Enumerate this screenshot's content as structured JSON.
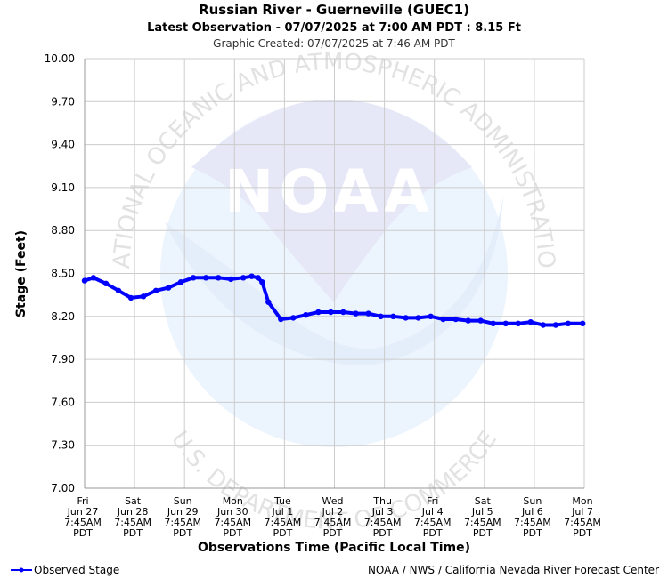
{
  "header": {
    "title": "Russian River - Guerneville (GUEC1)",
    "subtitle": "Latest Observation - 07/07/2025 at 7:00 AM PDT : 8.15 Ft",
    "created": "Graphic Created: 07/07/2025 at 7:46 AM PDT"
  },
  "watermark": {
    "logo_text": "NOAA",
    "ring_top": "NATIONAL OCEANIC AND ATMOSPHERIC ADMINISTRATION",
    "ring_bottom": "U.S. DEPARTMENT OF COMMERCE"
  },
  "footer": {
    "legend_label": "Observed Stage",
    "credit": "NOAA / NWS / California Nevada River Forecast Center"
  },
  "colors": {
    "series": "#0000ff",
    "grid": "#cccccc",
    "text": "#000000",
    "subtext": "#333333"
  },
  "chart_data": {
    "type": "line",
    "title": "Russian River - Guerneville (GUEC1)",
    "xlabel": "Observations Time (Pacific Local Time)",
    "ylabel": "Stage (Feet)",
    "ylim": [
      7.0,
      10.0
    ],
    "yticks": [
      "7.00",
      "7.30",
      "7.60",
      "7.90",
      "8.20",
      "8.50",
      "8.80",
      "9.10",
      "9.40",
      "9.70",
      "10.00"
    ],
    "xlim": [
      "2025-06-27 07:45",
      "2025-07-07 07:45"
    ],
    "xticks": [
      {
        "day": "Fri",
        "date": "Jun 27",
        "time": "7:45AM",
        "tz": "PDT"
      },
      {
        "day": "Sat",
        "date": "Jun 28",
        "time": "7:45AM",
        "tz": "PDT"
      },
      {
        "day": "Sun",
        "date": "Jun 29",
        "time": "7:45AM",
        "tz": "PDT"
      },
      {
        "day": "Mon",
        "date": "Jun 30",
        "time": "7:45AM",
        "tz": "PDT"
      },
      {
        "day": "Tue",
        "date": "Jul 1",
        "time": "7:45AM",
        "tz": "PDT"
      },
      {
        "day": "Wed",
        "date": "Jul 2",
        "time": "7:45AM",
        "tz": "PDT"
      },
      {
        "day": "Thu",
        "date": "Jul 3",
        "time": "7:45AM",
        "tz": "PDT"
      },
      {
        "day": "Fri",
        "date": "Jul 4",
        "time": "7:45AM",
        "tz": "PDT"
      },
      {
        "day": "Sat",
        "date": "Jul 5",
        "time": "7:45AM",
        "tz": "PDT"
      },
      {
        "day": "Sun",
        "date": "Jul 6",
        "time": "7:45AM",
        "tz": "PDT"
      },
      {
        "day": "Mon",
        "date": "Jul 7",
        "time": "7:45AM",
        "tz": "PDT"
      }
    ],
    "grid": true,
    "legend_position": "bottom-left",
    "series": [
      {
        "name": "Observed Stage",
        "x": [
          "2025-06-27 07:45",
          "2025-06-27 12:00",
          "2025-06-27 18:00",
          "2025-06-28 00:00",
          "2025-06-28 06:00",
          "2025-06-28 12:00",
          "2025-06-28 18:00",
          "2025-06-29 00:00",
          "2025-06-29 06:00",
          "2025-06-29 12:00",
          "2025-06-29 18:00",
          "2025-06-30 00:00",
          "2025-06-30 06:00",
          "2025-06-30 12:00",
          "2025-06-30 16:00",
          "2025-06-30 19:00",
          "2025-06-30 21:00",
          "2025-07-01 00:00",
          "2025-07-01 06:00",
          "2025-07-01 12:00",
          "2025-07-01 18:00",
          "2025-07-02 00:00",
          "2025-07-02 06:00",
          "2025-07-02 12:00",
          "2025-07-02 18:00",
          "2025-07-03 00:00",
          "2025-07-03 06:00",
          "2025-07-03 12:00",
          "2025-07-03 18:00",
          "2025-07-04 00:00",
          "2025-07-04 06:00",
          "2025-07-04 12:00",
          "2025-07-04 18:00",
          "2025-07-05 00:00",
          "2025-07-05 06:00",
          "2025-07-05 12:00",
          "2025-07-05 18:00",
          "2025-07-06 00:00",
          "2025-07-06 06:00",
          "2025-07-06 12:00",
          "2025-07-06 18:00",
          "2025-07-07 00:00",
          "2025-07-07 07:00"
        ],
        "y": [
          8.45,
          8.47,
          8.43,
          8.38,
          8.33,
          8.34,
          8.38,
          8.4,
          8.44,
          8.47,
          8.47,
          8.47,
          8.46,
          8.47,
          8.48,
          8.47,
          8.44,
          8.3,
          8.18,
          8.19,
          8.21,
          8.23,
          8.23,
          8.23,
          8.22,
          8.22,
          8.2,
          8.2,
          8.19,
          8.19,
          8.2,
          8.18,
          8.18,
          8.17,
          8.17,
          8.15,
          8.15,
          8.15,
          8.16,
          8.14,
          8.14,
          8.15,
          8.15
        ]
      }
    ]
  }
}
